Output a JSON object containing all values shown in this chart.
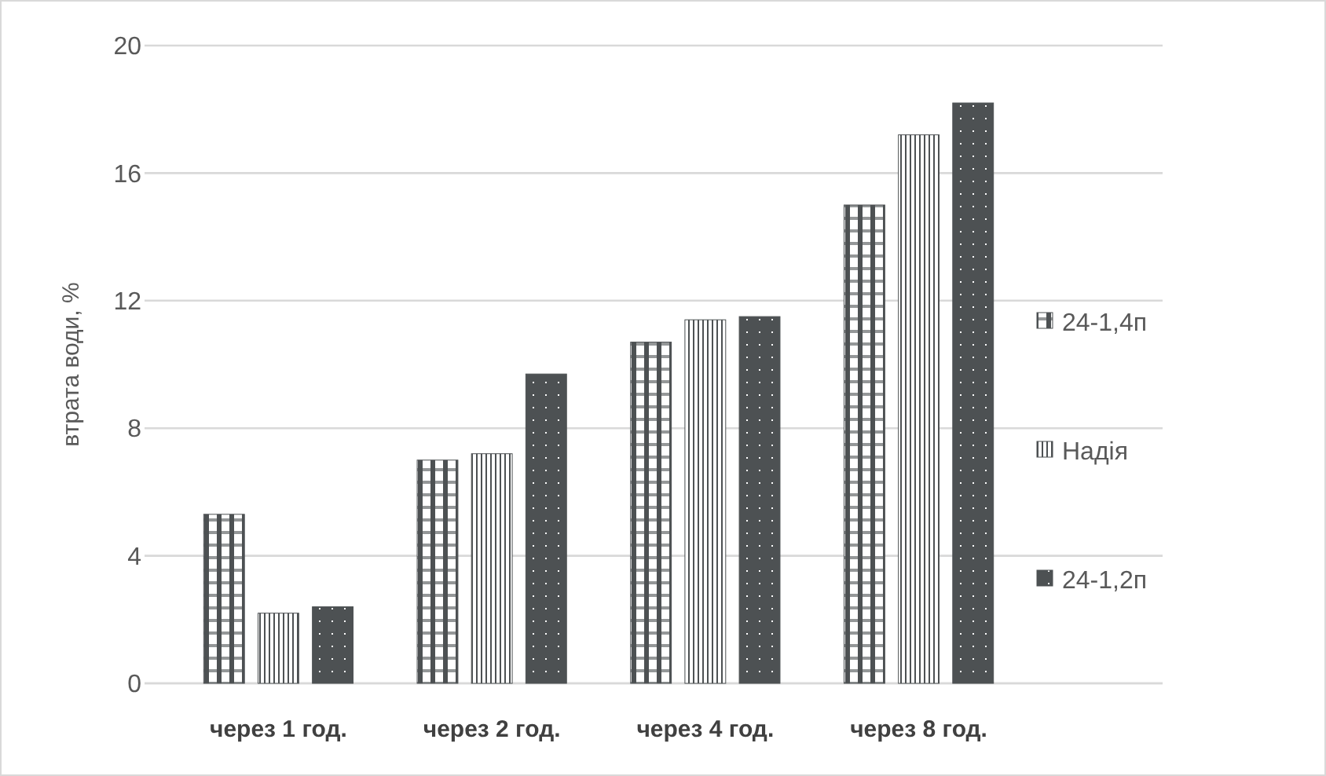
{
  "chart_data": {
    "type": "bar",
    "ylabel": "втрата води, %",
    "categories": [
      "через 1 год.",
      "через 2 год.",
      "через 4 год.",
      "через 8 год."
    ],
    "series": [
      {
        "name": "24-1,4п",
        "color": "#4d5153",
        "values": [
          5.3,
          7.0,
          10.7,
          15.0
        ]
      },
      {
        "name": "Надія",
        "color": "#4d5153",
        "values": [
          2.2,
          7.2,
          11.4,
          17.2
        ]
      },
      {
        "name": "24-1,2п",
        "color": "#4d5153",
        "values": [
          2.4,
          9.7,
          11.5,
          18.2
        ]
      }
    ],
    "ylim": [
      0,
      20
    ],
    "yticks": [
      0,
      4,
      8,
      12,
      16,
      20
    ],
    "grid": "y",
    "legend": "right"
  }
}
